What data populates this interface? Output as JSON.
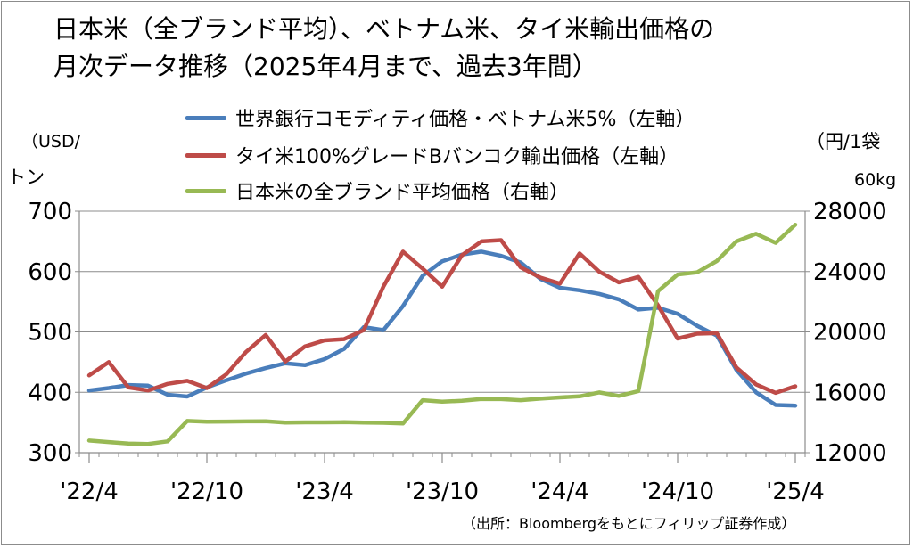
{
  "title_line1": "日本米（全ブランド平均）、ベトナム米、タイ米輸出価格の",
  "title_line2": "月次データ推移（2025年4月まで、過去3年間）",
  "unit_left_line1": "（USD/",
  "unit_left_line2": "トン",
  "unit_right_line1": "（円/1袋",
  "unit_right_line2": "60kg",
  "source": "（出所：Bloombergをもとにフィリップ証券作成）",
  "chart_data": {
    "type": "line",
    "x_tick_labels": [
      "'22/4",
      "'22/10",
      "'23/4",
      "'23/10",
      "'24/4",
      "'24/10",
      "'25/4"
    ],
    "x": [
      "2022-04",
      "2022-05",
      "2022-06",
      "2022-07",
      "2022-08",
      "2022-09",
      "2022-10",
      "2022-11",
      "2022-12",
      "2023-01",
      "2023-02",
      "2023-03",
      "2023-04",
      "2023-05",
      "2023-06",
      "2023-07",
      "2023-08",
      "2023-09",
      "2023-10",
      "2023-11",
      "2023-12",
      "2024-01",
      "2024-02",
      "2024-03",
      "2024-04",
      "2024-05",
      "2024-06",
      "2024-07",
      "2024-08",
      "2024-09",
      "2024-10",
      "2024-11",
      "2024-12",
      "2025-01",
      "2025-02",
      "2025-03",
      "2025-04"
    ],
    "y_left": {
      "range": [
        300,
        700
      ],
      "ticks": [
        300,
        400,
        500,
        600,
        700
      ]
    },
    "y_right": {
      "range": [
        12000,
        28000
      ],
      "ticks": [
        12000,
        16000,
        20000,
        24000,
        28000
      ]
    },
    "grid": true,
    "series": [
      {
        "name": "世界銀行コモディティ価格・ベトナム米5%（左軸）",
        "axis": "left",
        "color": "#4a7ebb",
        "values": [
          403,
          407,
          412,
          411,
          396,
          393,
          408,
          420,
          431,
          440,
          448,
          445,
          455,
          472,
          508,
          503,
          543,
          593,
          617,
          628,
          633,
          626,
          615,
          588,
          573,
          569,
          563,
          554,
          537,
          540,
          530,
          510,
          494,
          437,
          400,
          379,
          378
        ]
      },
      {
        "name": "タイ米100%グレードBバンコク輸出価格（左軸）",
        "axis": "left",
        "color": "#be4b48",
        "values": [
          428,
          450,
          408,
          403,
          414,
          419,
          407,
          430,
          467,
          495,
          451,
          476,
          486,
          488,
          503,
          575,
          633,
          605,
          575,
          627,
          650,
          652,
          607,
          590,
          580,
          630,
          600,
          582,
          591,
          544,
          489,
          497,
          498,
          441,
          413,
          399,
          410
        ]
      },
      {
        "name": "日本米の全ブランド平均価格（右軸）",
        "axis": "right",
        "color": "#98b954",
        "values": [
          12800,
          12700,
          12600,
          12580,
          12750,
          14100,
          14050,
          14060,
          14070,
          14080,
          13990,
          14010,
          14010,
          14020,
          13990,
          13980,
          13930,
          15480,
          15380,
          15440,
          15560,
          15550,
          15480,
          15580,
          15660,
          15730,
          15990,
          15760,
          16080,
          22700,
          23800,
          23950,
          24700,
          26000,
          26500,
          25900,
          27100
        ]
      }
    ]
  }
}
